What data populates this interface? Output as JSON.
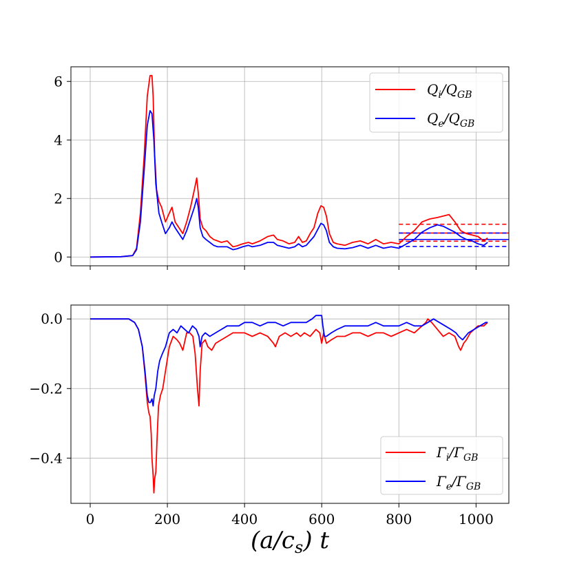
{
  "chart_data": [
    {
      "type": "line",
      "panel": "top",
      "title": "",
      "xlabel": "",
      "ylabel": "",
      "xlim": [
        -50,
        1085
      ],
      "ylim": [
        -0.3,
        6.5
      ],
      "xticks": [
        0,
        200,
        400,
        600,
        800,
        1000
      ],
      "yticks": [
        0,
        2,
        4,
        6
      ],
      "ytick_labels": [
        "0",
        "2",
        "4",
        "6"
      ],
      "grid": true,
      "legend_placement": "upper right",
      "series": [
        {
          "name": "Q_i/Q_GB",
          "legend": {
            "base": "Q",
            "sub1": "i",
            "mid": "/Q",
            "sub2": "GB"
          },
          "color": "#ff0000",
          "x": [
            0,
            80,
            110,
            120,
            130,
            140,
            148,
            155,
            160,
            163,
            167,
            172,
            178,
            185,
            195,
            205,
            212,
            220,
            230,
            240,
            250,
            260,
            270,
            276,
            280,
            285,
            292,
            300,
            310,
            320,
            330,
            340,
            355,
            370,
            380,
            395,
            410,
            420,
            440,
            460,
            475,
            485,
            500,
            515,
            530,
            540,
            550,
            560,
            570,
            580,
            590,
            598,
            605,
            612,
            620,
            630,
            640,
            660,
            680,
            700,
            720,
            740,
            760,
            780,
            800,
            820,
            840,
            860,
            880,
            900,
            915,
            930,
            945,
            960,
            975,
            990,
            1005,
            1020,
            1030
          ],
          "y": [
            0.0,
            0.01,
            0.05,
            0.3,
            1.5,
            3.5,
            5.5,
            6.2,
            6.2,
            5.5,
            3.5,
            2.3,
            1.9,
            1.7,
            1.2,
            1.5,
            1.7,
            1.2,
            1.0,
            0.8,
            1.2,
            1.7,
            2.3,
            2.7,
            2.2,
            1.3,
            1.0,
            0.9,
            0.7,
            0.6,
            0.55,
            0.5,
            0.55,
            0.35,
            0.38,
            0.45,
            0.5,
            0.45,
            0.55,
            0.7,
            0.75,
            0.6,
            0.55,
            0.45,
            0.5,
            0.7,
            0.5,
            0.55,
            0.8,
            1.0,
            1.5,
            1.75,
            1.7,
            1.4,
            0.8,
            0.5,
            0.45,
            0.4,
            0.5,
            0.55,
            0.45,
            0.6,
            0.45,
            0.5,
            0.45,
            0.7,
            0.9,
            1.2,
            1.3,
            1.35,
            1.4,
            1.45,
            1.2,
            0.9,
            0.8,
            0.75,
            0.7,
            0.55,
            0.65
          ]
        },
        {
          "name": "Q_e/Q_GB",
          "legend": {
            "base": "Q",
            "sub1": "e",
            "mid": "/Q",
            "sub2": "GB"
          },
          "color": "#0000ff",
          "x": [
            0,
            80,
            110,
            120,
            130,
            140,
            148,
            155,
            160,
            165,
            170,
            178,
            185,
            195,
            205,
            212,
            220,
            230,
            240,
            250,
            260,
            270,
            276,
            280,
            285,
            292,
            300,
            310,
            320,
            330,
            340,
            355,
            370,
            380,
            395,
            410,
            420,
            440,
            460,
            475,
            485,
            500,
            515,
            530,
            540,
            550,
            560,
            570,
            580,
            590,
            598,
            605,
            612,
            620,
            630,
            640,
            660,
            680,
            700,
            720,
            740,
            760,
            780,
            800,
            820,
            840,
            860,
            880,
            900,
            915,
            930,
            945,
            960,
            975,
            990,
            1005,
            1020,
            1030
          ],
          "y": [
            0.0,
            0.01,
            0.05,
            0.25,
            1.2,
            3.0,
            4.5,
            5.0,
            4.9,
            4.0,
            2.5,
            1.5,
            1.2,
            0.8,
            1.0,
            1.2,
            1.0,
            0.8,
            0.6,
            0.9,
            1.3,
            1.7,
            2.0,
            1.7,
            1.0,
            0.7,
            0.6,
            0.5,
            0.4,
            0.35,
            0.35,
            0.35,
            0.25,
            0.28,
            0.35,
            0.4,
            0.35,
            0.4,
            0.5,
            0.5,
            0.4,
            0.35,
            0.3,
            0.35,
            0.45,
            0.35,
            0.4,
            0.55,
            0.7,
            0.95,
            1.15,
            1.1,
            0.9,
            0.5,
            0.35,
            0.3,
            0.28,
            0.32,
            0.4,
            0.3,
            0.4,
            0.3,
            0.35,
            0.3,
            0.45,
            0.6,
            0.85,
            1.0,
            1.1,
            1.05,
            0.95,
            0.85,
            0.7,
            0.6,
            0.55,
            0.45,
            0.4,
            0.5
          ]
        }
      ],
      "reference_lines": [
        {
          "color": "#ff0000",
          "style": "solid",
          "y": 0.82,
          "x_from": 800,
          "x_to": 1085
        },
        {
          "color": "#ff0000",
          "style": "dashed",
          "y": 1.12,
          "x_from": 800,
          "x_to": 1085
        },
        {
          "color": "#ff0000",
          "style": "dashed",
          "y": 0.54,
          "x_from": 800,
          "x_to": 1085
        },
        {
          "color": "#0000ff",
          "style": "solid",
          "y": 0.6,
          "x_from": 800,
          "x_to": 1085
        },
        {
          "color": "#0000ff",
          "style": "dashed",
          "y": 0.82,
          "x_from": 800,
          "x_to": 1085
        },
        {
          "color": "#0000ff",
          "style": "dashed",
          "y": 0.36,
          "x_from": 800,
          "x_to": 1085
        }
      ]
    },
    {
      "type": "line",
      "panel": "bottom",
      "title": "",
      "xlabel": "(a/c_s) t",
      "ylabel": "",
      "xlim": [
        -50,
        1085
      ],
      "ylim": [
        -0.53,
        0.04
      ],
      "xticks": [
        0,
        200,
        400,
        600,
        800,
        1000
      ],
      "xtick_labels": [
        "0",
        "200",
        "400",
        "600",
        "800",
        "1000"
      ],
      "yticks": [
        0.0,
        -0.2,
        -0.4
      ],
      "ytick_labels": [
        "0.0",
        "−0.2",
        "−0.4"
      ],
      "grid": true,
      "legend_placement": "lower right",
      "series": [
        {
          "name": "Γ_i/Γ_GB",
          "legend": {
            "base": "Γ",
            "sub1": "i",
            "mid": "/Γ",
            "sub2": "GB"
          },
          "color": "#ff0000",
          "x": [
            0,
            100,
            115,
            125,
            135,
            142,
            148,
            152,
            155,
            158,
            160,
            163,
            165,
            167,
            170,
            173,
            177,
            182,
            188,
            195,
            205,
            215,
            225,
            232,
            240,
            250,
            258,
            266,
            272,
            278,
            282,
            285,
            290,
            298,
            305,
            315,
            325,
            340,
            355,
            370,
            385,
            400,
            420,
            440,
            460,
            475,
            480,
            490,
            505,
            520,
            535,
            545,
            555,
            570,
            585,
            595,
            600,
            605,
            612,
            625,
            640,
            660,
            680,
            700,
            720,
            740,
            760,
            780,
            800,
            820,
            840,
            860,
            870,
            875,
            885,
            900,
            915,
            930,
            945,
            955,
            960,
            968,
            975,
            985,
            995,
            1005,
            1020,
            1030
          ],
          "y": [
            0.0,
            0.0,
            -0.01,
            -0.03,
            -0.08,
            -0.16,
            -0.24,
            -0.27,
            -0.28,
            -0.33,
            -0.4,
            -0.45,
            -0.5,
            -0.46,
            -0.44,
            -0.35,
            -0.25,
            -0.22,
            -0.2,
            -0.15,
            -0.08,
            -0.05,
            -0.06,
            -0.07,
            -0.09,
            -0.04,
            -0.04,
            -0.05,
            -0.1,
            -0.2,
            -0.25,
            -0.15,
            -0.07,
            -0.06,
            -0.08,
            -0.09,
            -0.07,
            -0.06,
            -0.05,
            -0.04,
            -0.04,
            -0.04,
            -0.05,
            -0.04,
            -0.05,
            -0.07,
            -0.08,
            -0.05,
            -0.04,
            -0.05,
            -0.04,
            -0.05,
            -0.04,
            -0.05,
            -0.03,
            -0.04,
            -0.07,
            -0.04,
            -0.07,
            -0.06,
            -0.05,
            -0.05,
            -0.04,
            -0.04,
            -0.05,
            -0.04,
            -0.04,
            -0.05,
            -0.04,
            -0.03,
            -0.04,
            -0.02,
            -0.01,
            0.0,
            -0.01,
            -0.03,
            -0.05,
            -0.04,
            -0.05,
            -0.08,
            -0.09,
            -0.07,
            -0.06,
            -0.04,
            -0.03,
            -0.02,
            -0.02,
            -0.01
          ]
        },
        {
          "name": "Γ_e/Γ_GB",
          "legend": {
            "base": "Γ",
            "sub1": "e",
            "mid": "/Γ",
            "sub2": "GB"
          },
          "color": "#0000ff",
          "x": [
            0,
            100,
            115,
            125,
            135,
            142,
            148,
            152,
            156,
            160,
            163,
            166,
            170,
            175,
            180,
            187,
            195,
            205,
            215,
            225,
            235,
            245,
            255,
            265,
            275,
            282,
            285,
            290,
            298,
            310,
            325,
            340,
            355,
            370,
            385,
            400,
            420,
            440,
            460,
            480,
            500,
            520,
            540,
            560,
            575,
            585,
            595,
            600,
            603,
            607,
            612,
            625,
            640,
            660,
            680,
            700,
            720,
            740,
            760,
            780,
            800,
            820,
            840,
            860,
            875,
            890,
            905,
            920,
            935,
            948,
            955,
            965,
            980,
            995,
            1010,
            1025,
            1030
          ],
          "y": [
            0.0,
            0.0,
            -0.01,
            -0.03,
            -0.08,
            -0.15,
            -0.22,
            -0.24,
            -0.24,
            -0.23,
            -0.25,
            -0.22,
            -0.2,
            -0.15,
            -0.12,
            -0.1,
            -0.08,
            -0.04,
            -0.03,
            -0.04,
            -0.02,
            -0.03,
            -0.04,
            -0.02,
            -0.03,
            -0.05,
            -0.08,
            -0.05,
            -0.04,
            -0.05,
            -0.04,
            -0.03,
            -0.02,
            -0.02,
            -0.02,
            -0.01,
            -0.01,
            -0.02,
            -0.01,
            -0.01,
            -0.02,
            -0.01,
            -0.01,
            -0.01,
            0.0,
            0.01,
            0.01,
            0.01,
            -0.02,
            -0.05,
            -0.05,
            -0.04,
            -0.03,
            -0.02,
            -0.02,
            -0.02,
            -0.02,
            -0.01,
            -0.02,
            -0.02,
            -0.02,
            -0.01,
            -0.02,
            -0.02,
            -0.01,
            0.0,
            -0.01,
            -0.02,
            -0.03,
            -0.04,
            -0.05,
            -0.06,
            -0.04,
            -0.03,
            -0.02,
            -0.01,
            -0.01
          ]
        }
      ]
    }
  ]
}
